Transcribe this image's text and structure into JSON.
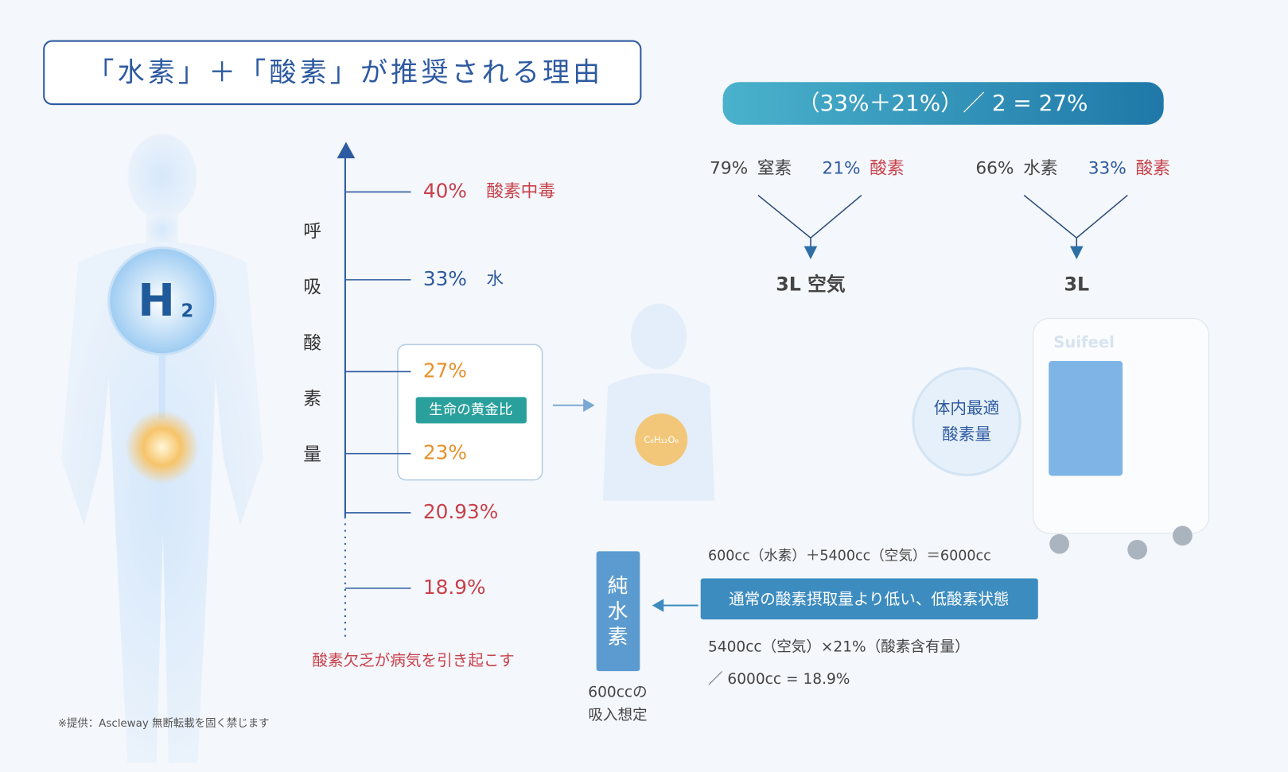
{
  "header": {
    "title": "「水素」＋「酸素」が推奨される理由"
  },
  "scale": {
    "axis_label": [
      "呼",
      "吸",
      "酸",
      "素",
      "量"
    ],
    "levels": [
      {
        "value": "40%",
        "label": "酸素中毒"
      },
      {
        "value": "33%",
        "label": "水"
      },
      {
        "value": "27%"
      },
      {
        "value": "23%"
      },
      {
        "value": "20.93%"
      },
      {
        "value": "18.9%"
      }
    ],
    "golden_ratio": "生命の黄金比",
    "footer": "酸素欠乏が病気を引き起こす"
  },
  "h2": {
    "symbol": "H",
    "subscript": "2"
  },
  "molecule": "C₆H₁₂O₆",
  "formula": "（33%＋21%）／ 2 = 27%",
  "mixes": [
    {
      "items": [
        {
          "value": "79%",
          "label": "窒素"
        },
        {
          "value": "21%",
          "label": "酸素"
        }
      ],
      "result": "3L 空気"
    },
    {
      "items": [
        {
          "value": "66%",
          "label": "水素"
        },
        {
          "value": "33%",
          "label": "酸素"
        }
      ],
      "result": "3L"
    }
  ],
  "device": {
    "brand": "Suifeel",
    "badge": [
      "体内最適",
      "酸素量"
    ]
  },
  "calc": {
    "line1": "600cc（水素）＋5400cc（空気）＝6000cc",
    "highlight": "通常の酸素摂取量より低い、低酸素状態",
    "line2": "5400cc（空気）×21%（酸素含有量）",
    "line3": "／ 6000cc = 18.9%"
  },
  "pure": {
    "label": [
      "純",
      "水",
      "素"
    ],
    "caption": [
      "600ccの",
      "吸入想定"
    ]
  },
  "credit": "※提供：Ascleway 無断転載を固く禁じます"
}
